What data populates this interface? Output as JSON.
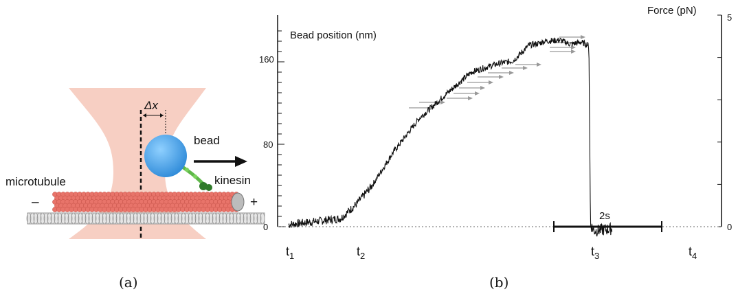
{
  "panel_a": {
    "caption": "(a)",
    "labels": {
      "delta_x": "Δx",
      "bead": "bead",
      "kinesin": "kinesin",
      "microtubule": "microtubule",
      "minus_end": "–",
      "plus_end": "+"
    },
    "colors": {
      "trap": "#f6c7b8",
      "bead": "#2e8ad8",
      "microtubule": "#e8746a",
      "kinesin": "#5fb84a",
      "surface": "#9a9a9a"
    }
  },
  "panel_b": {
    "caption": "(b)",
    "scale_bar_label": "2s",
    "time_markers": [
      {
        "base": "t",
        "sub": "1"
      },
      {
        "base": "t",
        "sub": "2"
      },
      {
        "base": "t",
        "sub": "3"
      },
      {
        "base": "t",
        "sub": "4"
      }
    ]
  },
  "chart_data": {
    "type": "line",
    "title": "",
    "ylabel": "Bead position (nm)",
    "y2label": "Force (pN)",
    "ylim": [
      0,
      190
    ],
    "y2lim": [
      0,
      5
    ],
    "y_ticks": [
      "0",
      "80",
      "160"
    ],
    "y2_ticks": [
      "0",
      "5"
    ],
    "grid": false,
    "x_unit": "s",
    "series": [
      {
        "x": [
          0.0,
          0.5,
          1.0,
          1.3,
          1.6,
          2.0,
          2.5,
          3.0,
          3.5,
          3.8,
          4.0,
          4.3,
          4.6,
          4.8,
          4.9,
          5.2,
          5.4,
          5.6,
          5.75,
          5.78,
          5.85,
          6.2
        ],
        "y": [
          2,
          5,
          8,
          22,
          40,
          72,
          105,
          128,
          150,
          155,
          158,
          161,
          176,
          178,
          180,
          181,
          177,
          179,
          176,
          2,
          -4,
          -2
        ]
      }
    ],
    "step_arrows": 14,
    "line_color": "#111111",
    "arrow_color": "#999999"
  }
}
